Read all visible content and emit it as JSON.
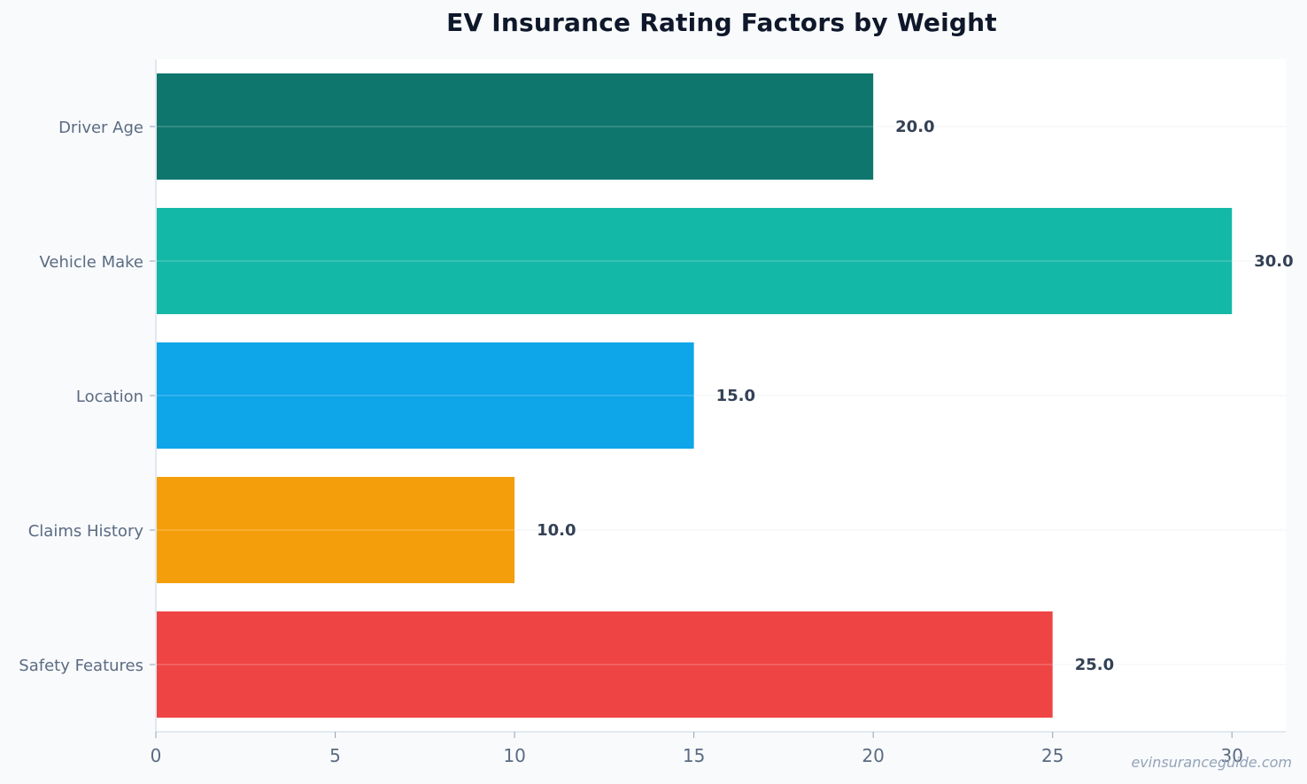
{
  "chart_data": {
    "type": "bar",
    "orientation": "horizontal",
    "title": "EV Insurance Rating Factors by Weight",
    "xlabel": "",
    "ylabel": "",
    "xlim": [
      0,
      31.5
    ],
    "xticks": [
      0,
      5,
      10,
      15,
      20,
      25,
      30
    ],
    "grid": false,
    "categories": [
      "Driver Age",
      "Vehicle Make",
      "Location",
      "Claims History",
      "Safety Features"
    ],
    "values": [
      20.0,
      30.0,
      15.0,
      10.0,
      25.0
    ],
    "data_labels": [
      "20.0",
      "30.0",
      "15.0",
      "10.0",
      "25.0"
    ],
    "colors": [
      "#0f766e",
      "#14b8a6",
      "#0ea5e9",
      "#f59e0b",
      "#ef4444"
    ]
  },
  "watermark": "evinsuranceguide.com"
}
